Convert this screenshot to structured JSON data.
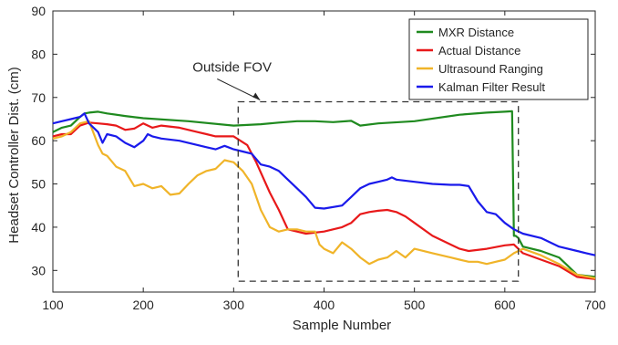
{
  "chart_data": {
    "type": "line",
    "title": "",
    "xlabel": "Sample Number",
    "ylabel": "Headset Controller Dist. (cm)",
    "xlim": [
      100,
      700
    ],
    "ylim": [
      25,
      90
    ],
    "xticks": [
      100,
      200,
      300,
      400,
      500,
      600,
      700
    ],
    "yticks": [
      30,
      40,
      50,
      60,
      70,
      80,
      90
    ],
    "grid": false,
    "legend_position": "top-right",
    "annotations": [
      {
        "text": "Outside FOV",
        "type": "dashed-box",
        "x_range": [
          305,
          615
        ],
        "y_range": [
          27.5,
          69
        ]
      }
    ],
    "series": [
      {
        "name": "MXR Distance",
        "color": "#1f8a1f",
        "x": [
          100,
          110,
          120,
          130,
          135,
          140,
          150,
          160,
          180,
          200,
          250,
          300,
          330,
          350,
          370,
          390,
          410,
          430,
          440,
          460,
          500,
          550,
          580,
          600,
          608,
          610,
          612,
          615,
          620,
          640,
          660,
          680,
          700
        ],
        "y": [
          62,
          63,
          63.5,
          65.5,
          66.3,
          66.5,
          66.7,
          66.3,
          65.7,
          65.2,
          64.5,
          63.5,
          63.8,
          64.2,
          64.5,
          64.5,
          64.3,
          64.6,
          63.5,
          64,
          64.5,
          66,
          66.5,
          66.7,
          66.8,
          38,
          38,
          37.5,
          35.5,
          34.5,
          33,
          29,
          28.5
        ]
      },
      {
        "name": "Actual Distance",
        "color": "#e8191a",
        "x": [
          100,
          110,
          120,
          130,
          140,
          150,
          160,
          170,
          180,
          190,
          200,
          210,
          220,
          240,
          260,
          270,
          280,
          300,
          315,
          325,
          340,
          350,
          360,
          370,
          380,
          400,
          410,
          420,
          430,
          440,
          450,
          460,
          470,
          480,
          490,
          500,
          520,
          540,
          550,
          560,
          580,
          600,
          610,
          620,
          640,
          660,
          680,
          700
        ],
        "y": [
          61,
          61.5,
          61.5,
          63.5,
          64.2,
          64,
          63.8,
          63.5,
          62.5,
          62.8,
          64,
          63,
          63.5,
          63,
          62,
          61.5,
          61,
          61,
          59,
          55,
          48,
          44,
          39.5,
          39,
          38.5,
          39,
          39.5,
          40,
          41,
          43,
          43.5,
          43.8,
          44,
          43.5,
          42.5,
          41,
          38,
          36,
          35,
          34.5,
          35,
          35.8,
          36,
          34,
          32.5,
          31,
          28.5,
          28
        ]
      },
      {
        "name": "Ultrasound Ranging",
        "color": "#f0b429",
        "x": [
          100,
          110,
          120,
          130,
          140,
          150,
          155,
          160,
          170,
          180,
          190,
          200,
          210,
          220,
          230,
          240,
          250,
          260,
          270,
          280,
          290,
          300,
          310,
          320,
          330,
          340,
          350,
          360,
          370,
          380,
          390,
          395,
          400,
          410,
          420,
          430,
          440,
          450,
          460,
          470,
          480,
          490,
          500,
          520,
          540,
          550,
          560,
          570,
          580,
          590,
          600,
          610,
          620,
          640,
          660,
          680,
          700
        ],
        "y": [
          60.5,
          61,
          62,
          64,
          64.5,
          59,
          57,
          56.5,
          54,
          53,
          49.5,
          50,
          49,
          49.5,
          47.5,
          47.8,
          50,
          52,
          53,
          53.5,
          55.5,
          55,
          53,
          50,
          44,
          40,
          39,
          39.5,
          39.5,
          39,
          39,
          36,
          35,
          34,
          36.5,
          35,
          33,
          31.5,
          32.5,
          33,
          34.5,
          33,
          35,
          34,
          33,
          32.5,
          32,
          32,
          31.5,
          32,
          32.5,
          34,
          35,
          33.5,
          31.5,
          29,
          28.2
        ]
      },
      {
        "name": "Kalman Filter Result",
        "color": "#1a1aeb",
        "x": [
          100,
          110,
          120,
          130,
          135,
          140,
          150,
          155,
          160,
          170,
          180,
          190,
          200,
          205,
          210,
          220,
          240,
          260,
          270,
          280,
          290,
          300,
          310,
          320,
          330,
          340,
          350,
          360,
          370,
          380,
          390,
          400,
          420,
          430,
          440,
          450,
          460,
          470,
          475,
          480,
          500,
          520,
          540,
          550,
          560,
          570,
          580,
          590,
          600,
          610,
          620,
          640,
          660,
          680,
          690,
          700
        ],
        "y": [
          64,
          64.5,
          65,
          65.5,
          66.3,
          64,
          62,
          59.5,
          61.5,
          61,
          59.5,
          58.5,
          60,
          61.5,
          61,
          60.5,
          60,
          59,
          58.5,
          58,
          58.8,
          58,
          57.5,
          57,
          54.5,
          54,
          53,
          51,
          49,
          47,
          44.5,
          44.3,
          45,
          47,
          49,
          50,
          50.5,
          51,
          51.5,
          51,
          50.5,
          50,
          49.8,
          49.8,
          49.5,
          46,
          43.5,
          43,
          41,
          39.5,
          38.5,
          37.5,
          35.5,
          34.5,
          34,
          33.5
        ]
      }
    ]
  }
}
